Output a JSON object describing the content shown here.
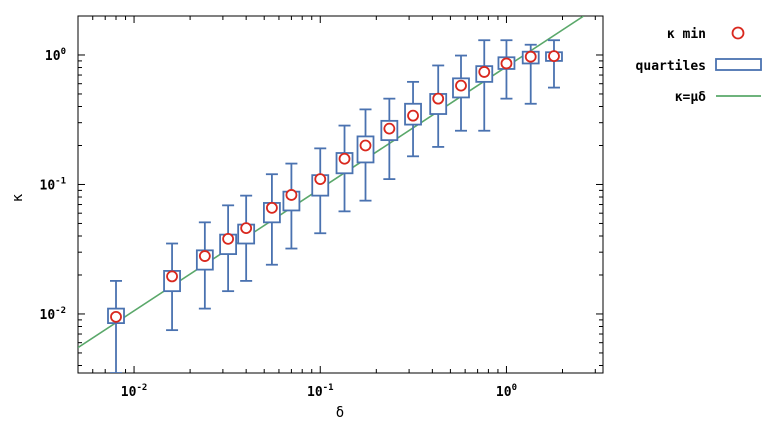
{
  "chart_data": {
    "type": "box",
    "xscale": "log",
    "yscale": "log",
    "xlabel": "δ",
    "ylabel": "κ",
    "xlim": [
      0.005,
      3.3
    ],
    "ylim": [
      0.0035,
      2.0
    ],
    "grid": false,
    "legend_position": "outside-right",
    "x_ticks": [
      {
        "value": 0.01,
        "base": "10",
        "exp": "-2"
      },
      {
        "value": 0.1,
        "base": "10",
        "exp": "-1"
      },
      {
        "value": 1,
        "base": "10",
        "exp": "0"
      }
    ],
    "y_ticks": [
      {
        "value": 0.01,
        "base": "10",
        "exp": "-2"
      },
      {
        "value": 0.1,
        "base": "10",
        "exp": "-1"
      },
      {
        "value": 1,
        "base": "10",
        "exp": "0"
      }
    ],
    "series": [
      {
        "name": "quartiles",
        "kind": "box",
        "color": "#4a72b0",
        "boxes": [
          {
            "x": 0.008,
            "low": 0.0035,
            "q1": 0.0085,
            "q3": 0.011,
            "high": 0.018
          },
          {
            "x": 0.016,
            "low": 0.0075,
            "q1": 0.015,
            "q3": 0.0215,
            "high": 0.035
          },
          {
            "x": 0.024,
            "low": 0.011,
            "q1": 0.022,
            "q3": 0.031,
            "high": 0.051
          },
          {
            "x": 0.032,
            "low": 0.015,
            "q1": 0.029,
            "q3": 0.041,
            "high": 0.069
          },
          {
            "x": 0.04,
            "low": 0.018,
            "q1": 0.035,
            "q3": 0.049,
            "high": 0.082
          },
          {
            "x": 0.055,
            "low": 0.024,
            "q1": 0.051,
            "q3": 0.072,
            "high": 0.12
          },
          {
            "x": 0.07,
            "low": 0.032,
            "q1": 0.063,
            "q3": 0.088,
            "high": 0.145
          },
          {
            "x": 0.1,
            "low": 0.042,
            "q1": 0.082,
            "q3": 0.118,
            "high": 0.19
          },
          {
            "x": 0.135,
            "low": 0.062,
            "q1": 0.122,
            "q3": 0.175,
            "high": 0.285
          },
          {
            "x": 0.175,
            "low": 0.075,
            "q1": 0.148,
            "q3": 0.235,
            "high": 0.38
          },
          {
            "x": 0.235,
            "low": 0.11,
            "q1": 0.22,
            "q3": 0.31,
            "high": 0.46
          },
          {
            "x": 0.315,
            "low": 0.165,
            "q1": 0.29,
            "q3": 0.42,
            "high": 0.62
          },
          {
            "x": 0.43,
            "low": 0.195,
            "q1": 0.35,
            "q3": 0.5,
            "high": 0.83
          },
          {
            "x": 0.57,
            "low": 0.26,
            "q1": 0.47,
            "q3": 0.66,
            "high": 0.99
          },
          {
            "x": 0.76,
            "low": 0.26,
            "q1": 0.62,
            "q3": 0.82,
            "high": 1.3
          },
          {
            "x": 1.0,
            "low": 0.46,
            "q1": 0.78,
            "q3": 0.96,
            "high": 1.3
          },
          {
            "x": 1.35,
            "low": 0.42,
            "q1": 0.86,
            "q3": 1.06,
            "high": 1.2
          },
          {
            "x": 1.8,
            "low": 0.56,
            "q1": 0.9,
            "q3": 1.05,
            "high": 1.3
          }
        ]
      },
      {
        "name": "κ min",
        "kind": "scatter",
        "marker": "open-circle",
        "color": "#d9281e",
        "x": [
          0.008,
          0.016,
          0.024,
          0.032,
          0.04,
          0.055,
          0.07,
          0.1,
          0.135,
          0.175,
          0.235,
          0.315,
          0.43,
          0.57,
          0.76,
          1.0,
          1.35,
          1.8
        ],
        "y": [
          0.0095,
          0.0195,
          0.028,
          0.038,
          0.046,
          0.066,
          0.083,
          0.11,
          0.158,
          0.2,
          0.27,
          0.34,
          0.46,
          0.58,
          0.74,
          0.86,
          0.97,
          0.98
        ]
      },
      {
        "name": "κ=μδ",
        "kind": "line",
        "color": "#5aa86a",
        "x": [
          0.005,
          2.6
        ],
        "y": [
          0.0055,
          2.0
        ]
      }
    ]
  }
}
